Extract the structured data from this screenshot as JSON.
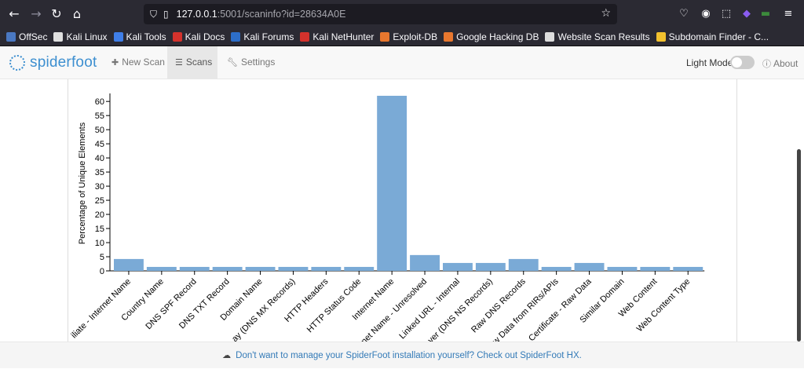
{
  "browser": {
    "url_host": "127.0.0.1",
    "url_rest": ":5001/scaninfo?id=28634A0E",
    "bookmarks": [
      {
        "label": "OffSec",
        "color": "#4a78c2"
      },
      {
        "label": "Kali Linux",
        "color": "#e0e0e0"
      },
      {
        "label": "Kali Tools",
        "color": "#3f7ee8"
      },
      {
        "label": "Kali Docs",
        "color": "#d4322c"
      },
      {
        "label": "Kali Forums",
        "color": "#2d6ec8"
      },
      {
        "label": "Kali NetHunter",
        "color": "#d4322c"
      },
      {
        "label": "Exploit-DB",
        "color": "#e8772e"
      },
      {
        "label": "Google Hacking DB",
        "color": "#e8772e"
      },
      {
        "label": "Website Scan Results",
        "color": "#dddddd"
      },
      {
        "label": "Subdomain Finder - C...",
        "color": "#f2c12e"
      }
    ]
  },
  "app": {
    "logo_text": "spiderfoot",
    "nav": {
      "new_scan": "New Scan",
      "scans": "Scans",
      "settings": "Settings",
      "light_mode": "Light Mode",
      "about": "About"
    },
    "footer_text": "Don't want to manage your SpiderFoot installation yourself? Check out SpiderFoot HX."
  },
  "colors": {
    "bar": "#7aaad6",
    "accent": "#3d8fd0"
  },
  "chart_data": {
    "type": "bar",
    "ylabel": "Percentage of Unique Elements",
    "xlabel": "",
    "ylim": [
      0,
      62
    ],
    "yticks": [
      0,
      5,
      10,
      15,
      20,
      25,
      30,
      35,
      40,
      45,
      50,
      55,
      60
    ],
    "categories": [
      "iliate - Internet Name",
      "Country Name",
      "DNS SPF Record",
      "DNS TXT Record",
      "Domain Name",
      "ay (DNS MX Records)",
      "HTTP Headers",
      "HTTP Status Code",
      "Internet Name",
      "rnet Name - Unresolved",
      "Linked URL - Internal",
      "ver (DNS NS Records)",
      "Raw DNS Records",
      "w Data from RIRs/APIs",
      "Certificate - Raw Data",
      "Similar Domain",
      "Web Content",
      "Web Content Type"
    ],
    "values": [
      4.2,
      1.4,
      1.4,
      1.4,
      1.4,
      1.4,
      1.4,
      1.4,
      62,
      5.6,
      2.8,
      2.8,
      4.2,
      1.4,
      2.8,
      1.4,
      1.4,
      1.4
    ]
  }
}
